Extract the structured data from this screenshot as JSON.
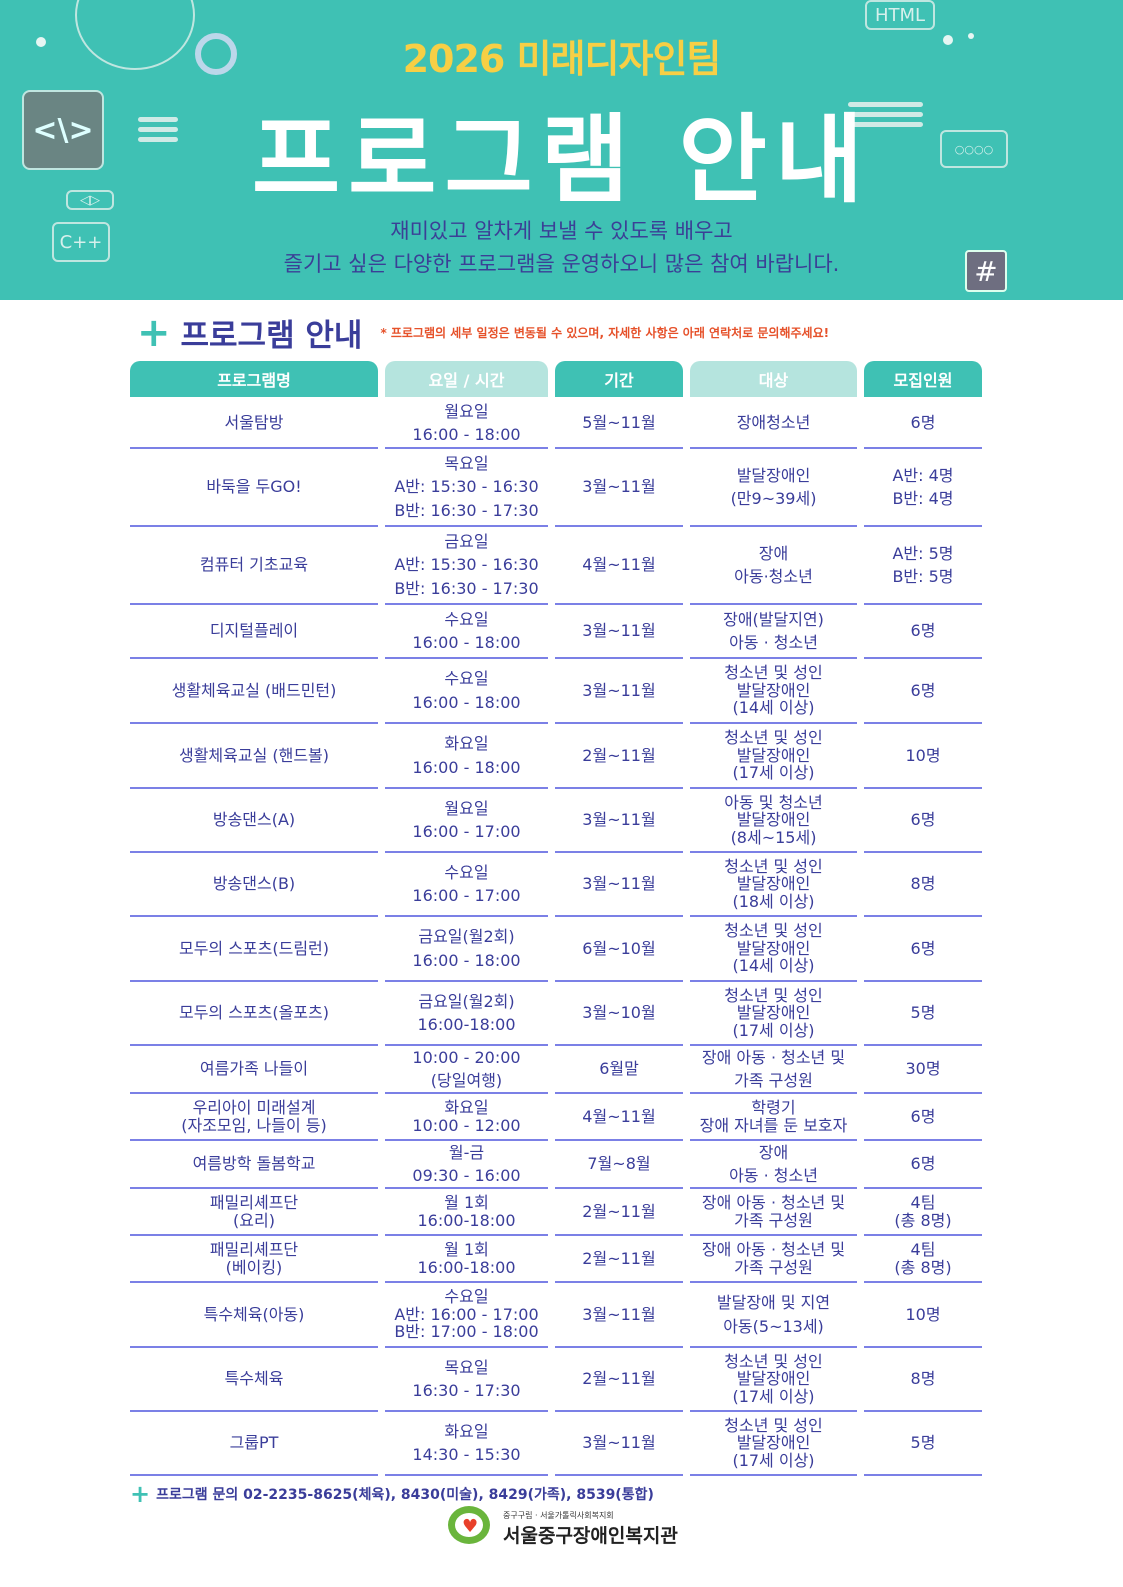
{
  "banner": {
    "team": "2026 미래디자인팀",
    "title": "프로그램 안내",
    "subtitle_line1": "재미있고 알차게 보낼 수 있도록 배우고",
    "subtitle_line2": "즐기고 싶은 다양한 프로그램을 운영하오니 많은 참여 바랍니다.",
    "deco": {
      "html": "HTML",
      "cpp": "C++",
      "code": "<\\>",
      "hash": "#",
      "chat": "○○○○",
      "arrows": "◁▷"
    }
  },
  "section": {
    "title": "프로그램 안내",
    "notice": "* 프로그램의 세부 일정은 변동될 수 있으며, 자세한 사항은 아래 연락처로 문의해주세요!"
  },
  "table": {
    "headers": [
      "프로그램명",
      "요일 / 시간",
      "기간",
      "대상",
      "모집인원"
    ],
    "rows": [
      [
        "서울탐방",
        "월요일\n16:00 - 18:00",
        "5월~11월",
        "장애청소년",
        "6명"
      ],
      [
        "바둑을 두GO!",
        "목요일\nA반: 15:30 - 16:30\nB반: 16:30 - 17:30",
        "3월~11월",
        "발달장애인\n(만9~39세)",
        "A반: 4명\nB반: 4명"
      ],
      [
        "컴퓨터 기초교육",
        "금요일\nA반: 15:30 - 16:30\nB반: 16:30 - 17:30",
        "4월~11월",
        "장애\n아동·청소년",
        "A반: 5명\nB반: 5명"
      ],
      [
        "디지털플레이",
        "수요일\n16:00 - 18:00",
        "3월~11월",
        "장애(발달지연)\n아동 · 청소년",
        "6명"
      ],
      [
        "생활체육교실 (배드민턴)",
        "수요일\n16:00 - 18:00",
        "3월~11월",
        "청소년 및 성인\n발달장애인\n(14세 이상)",
        "6명"
      ],
      [
        "생활체육교실 (핸드볼)",
        "화요일\n16:00 - 18:00",
        "2월~11월",
        "청소년 및 성인\n발달장애인\n(17세 이상)",
        "10명"
      ],
      [
        "방송댄스(A)",
        "월요일\n16:00 - 17:00",
        "3월~11월",
        "아동 및 청소년\n발달장애인\n(8세~15세)",
        "6명"
      ],
      [
        "방송댄스(B)",
        "수요일\n16:00 - 17:00",
        "3월~11월",
        "청소년 및 성인\n발달장애인\n(18세 이상)",
        "8명"
      ],
      [
        "모두의 스포츠(드림런)",
        "금요일(월2회)\n16:00 - 18:00",
        "6월~10월",
        "청소년 및 성인\n발달장애인\n(14세 이상)",
        "6명"
      ],
      [
        "모두의 스포츠(올포츠)",
        "금요일(월2회)\n16:00-18:00",
        "3월~10월",
        "청소년 및 성인\n발달장애인\n(17세 이상)",
        "5명"
      ],
      [
        "여름가족 나들이",
        "10:00 - 20:00\n(당일여행)",
        "6월말",
        "장애 아동 · 청소년 및\n가족 구성원",
        "30명"
      ],
      [
        "우리아이 미래설계\n(자조모임, 나들이 등)",
        "화요일\n10:00 - 12:00",
        "4월~11월",
        "학령기\n장애 자녀를 둔 보호자",
        "6명"
      ],
      [
        "여름방학 돌봄학교",
        "월-금\n09:30 - 16:00",
        "7월~8월",
        "장애\n아동 · 청소년",
        "6명"
      ],
      [
        "패밀리셰프단\n(요리)",
        "월 1회\n16:00-18:00",
        "2월~11월",
        "장애 아동 · 청소년 및\n가족 구성원",
        "4팀\n(총 8명)"
      ],
      [
        "패밀리셰프단\n(베이킹)",
        "월 1회\n16:00-18:00",
        "2월~11월",
        "장애 아동 · 청소년 및\n가족 구성원",
        "4팀\n(총 8명)"
      ],
      [
        "특수체육(아동)",
        "수요일\nA반: 16:00 - 17:00\nB반: 17:00 - 18:00",
        "3월~11월",
        "발달장애 및 지연\n아동(5~13세)",
        "10명"
      ],
      [
        "특수체육",
        "목요일\n16:30 - 17:30",
        "2월~11월",
        "청소년 및 성인\n발달장애인\n(17세 이상)",
        "8명"
      ],
      [
        "그룹PT",
        "화요일\n14:30 - 15:30",
        "3월~11월",
        "청소년 및 성인\n발달장애인\n(17세 이상)",
        "5명"
      ]
    ]
  },
  "footer": {
    "contact": "프로그램 문의  02-2235-8625(체육), 8430(미술), 8429(가족), 8539(통합)",
    "org_small": "중구구립 · 서울가톨릭사회복지회",
    "org_name": "서울중구장애인복지관"
  },
  "colors": {
    "teal": "#3fc1b4",
    "teal_light": "#b5e4de",
    "indigo": "#3a3d9a",
    "yellow": "#f7cf45",
    "notice": "#e6512a",
    "rule": "#7b80e6"
  }
}
